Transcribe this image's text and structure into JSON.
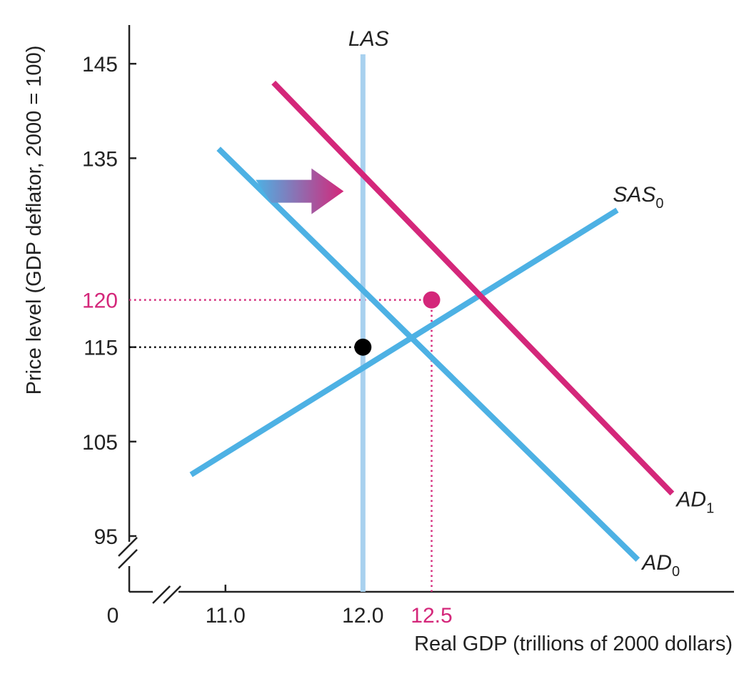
{
  "chart_data": {
    "type": "line",
    "xlabel": "Real GDP (trillions of 2000 dollars)",
    "ylabel": "Price level (GDP deflator, 2000 = 100)",
    "origin_label": "0",
    "x_ticks": [
      {
        "value": 11.0,
        "label": "11.0",
        "highlight": false
      },
      {
        "value": 12.0,
        "label": "12.0",
        "highlight": false
      },
      {
        "value": 12.5,
        "label": "12.5",
        "highlight": true
      }
    ],
    "y_ticks": [
      {
        "value": 95,
        "label": "95",
        "highlight": false
      },
      {
        "value": 105,
        "label": "105",
        "highlight": false
      },
      {
        "value": 115,
        "label": "115",
        "highlight": false
      },
      {
        "value": 120,
        "label": "120",
        "highlight": true
      },
      {
        "value": 135,
        "label": "135",
        "highlight": false
      },
      {
        "value": 145,
        "label": "145",
        "highlight": false
      }
    ],
    "xlim": [
      10.3,
      14.7
    ],
    "ylim": [
      89.1,
      149.1
    ],
    "axis_breaks": [
      "x",
      "y"
    ],
    "series": [
      {
        "key": "las",
        "name": "LAS",
        "subscript": "",
        "color": "#a8d1ef",
        "x": [
          12.0,
          12.0
        ],
        "y": [
          146,
          89.1
        ]
      },
      {
        "key": "sas0",
        "name": "SAS",
        "subscript": "0",
        "color": "#4db1e4",
        "x": [
          10.75,
          13.85
        ],
        "y": [
          101.5,
          129.5
        ]
      },
      {
        "key": "ad0",
        "name": "AD",
        "subscript": "0",
        "color": "#4db1e4",
        "x": [
          10.95,
          14.0
        ],
        "y": [
          136.0,
          92.5
        ]
      },
      {
        "key": "ad1",
        "name": "AD",
        "subscript": "1",
        "color": "#d4277a",
        "x": [
          11.35,
          14.25
        ],
        "y": [
          143.0,
          99.5
        ]
      }
    ],
    "equilibria": [
      {
        "x": 12.0,
        "y": 115,
        "color": "#000000",
        "guide_color": "#000000"
      },
      {
        "x": 12.5,
        "y": 120,
        "color": "#d4277a",
        "guide_color": "#d4277a"
      }
    ],
    "shift_arrow": {
      "x_from": 11.22,
      "x_to": 11.86,
      "y": 131.5,
      "color_from": "#4db1e4",
      "color_to": "#d4277a"
    },
    "grid": false,
    "legend": "none"
  }
}
